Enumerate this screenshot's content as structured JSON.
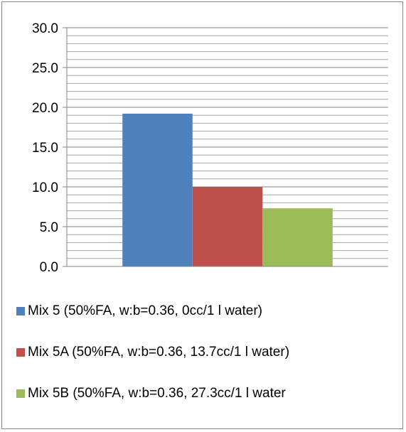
{
  "chart_data": {
    "type": "bar",
    "categories": [
      ""
    ],
    "series": [
      {
        "name": "Mix 5 (50%FA, w:b=0.36, 0cc/1 l water)",
        "values": [
          19.2
        ],
        "color": "#4F81BD"
      },
      {
        "name": "Mix 5A (50%FA, w:b=0.36, 13.7cc/1 l water)",
        "values": [
          10.0
        ],
        "color": "#C0504D"
      },
      {
        "name": "Mix 5B (50%FA, w:b=0.36, 27.3cc/1 l water",
        "values": [
          7.3
        ],
        "color": "#9BBB59"
      }
    ],
    "yticks": [
      "0.0",
      "5.0",
      "10.0",
      "15.0",
      "20.0",
      "25.0",
      "30.0"
    ],
    "ylim": [
      0,
      30
    ],
    "minor_step": 1,
    "grid": true,
    "legend_position": "bottom"
  }
}
